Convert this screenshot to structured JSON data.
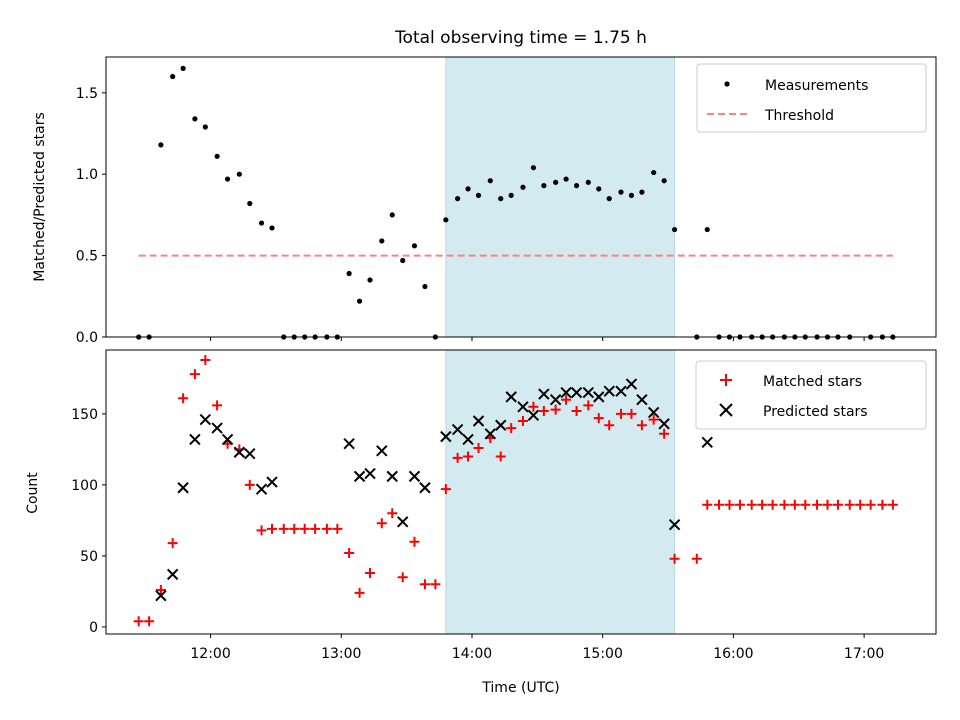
{
  "figure": {
    "title": "Total observing time = 1.75 h",
    "xlabel": "Time (UTC)",
    "x_tick_labels": [
      "12:00",
      "13:00",
      "14:00",
      "15:00",
      "16:00",
      "17:00"
    ],
    "x_tick_values": [
      12,
      13,
      14,
      15,
      16,
      17
    ],
    "xlim": [
      11.2,
      17.55
    ],
    "highlight_span": [
      13.8,
      15.55
    ],
    "highlight_color": "#d3eaf0"
  },
  "chart_data": [
    {
      "type": "scatter",
      "ylabel": "Matched/Predicted stars",
      "ylim": [
        0,
        1.72
      ],
      "y_ticks": [
        0.0,
        0.5,
        1.0,
        1.5
      ],
      "y_tick_labels": [
        "0.0",
        "0.5",
        "1.0",
        "1.5"
      ],
      "legend_position": "top-right",
      "series": [
        {
          "name": "Measurements",
          "marker": "dot",
          "color": "#000000",
          "points": [
            [
              11.45,
              0.0
            ],
            [
              11.53,
              0.0
            ],
            [
              11.62,
              1.18
            ],
            [
              11.71,
              1.6
            ],
            [
              11.79,
              1.65
            ],
            [
              11.88,
              1.34
            ],
            [
              11.96,
              1.29
            ],
            [
              12.05,
              1.11
            ],
            [
              12.13,
              0.97
            ],
            [
              12.22,
              1.0
            ],
            [
              12.3,
              0.82
            ],
            [
              12.39,
              0.7
            ],
            [
              12.47,
              0.67
            ],
            [
              12.56,
              0.0
            ],
            [
              12.64,
              0.0
            ],
            [
              12.72,
              0.0
            ],
            [
              12.8,
              0.0
            ],
            [
              12.89,
              0.0
            ],
            [
              12.97,
              0.0
            ],
            [
              13.06,
              0.39
            ],
            [
              13.14,
              0.22
            ],
            [
              13.22,
              0.35
            ],
            [
              13.31,
              0.59
            ],
            [
              13.39,
              0.75
            ],
            [
              13.47,
              0.47
            ],
            [
              13.56,
              0.56
            ],
            [
              13.64,
              0.31
            ],
            [
              13.72,
              0.0
            ],
            [
              13.8,
              0.72
            ],
            [
              13.89,
              0.85
            ],
            [
              13.97,
              0.91
            ],
            [
              14.05,
              0.87
            ],
            [
              14.14,
              0.96
            ],
            [
              14.22,
              0.85
            ],
            [
              14.3,
              0.87
            ],
            [
              14.39,
              0.92
            ],
            [
              14.47,
              1.04
            ],
            [
              14.55,
              0.93
            ],
            [
              14.64,
              0.95
            ],
            [
              14.72,
              0.97
            ],
            [
              14.8,
              0.93
            ],
            [
              14.89,
              0.95
            ],
            [
              14.97,
              0.91
            ],
            [
              15.05,
              0.85
            ],
            [
              15.14,
              0.89
            ],
            [
              15.22,
              0.87
            ],
            [
              15.3,
              0.89
            ],
            [
              15.39,
              1.01
            ],
            [
              15.47,
              0.96
            ],
            [
              15.55,
              0.66
            ],
            [
              15.72,
              0.0
            ],
            [
              15.8,
              0.66
            ],
            [
              15.89,
              0.0
            ],
            [
              15.97,
              0.0
            ],
            [
              16.05,
              0.0
            ],
            [
              16.14,
              0.0
            ],
            [
              16.22,
              0.0
            ],
            [
              16.3,
              0.0
            ],
            [
              16.39,
              0.0
            ],
            [
              16.47,
              0.0
            ],
            [
              16.55,
              0.0
            ],
            [
              16.64,
              0.0
            ],
            [
              16.72,
              0.0
            ],
            [
              16.8,
              0.0
            ],
            [
              16.89,
              0.0
            ],
            [
              17.05,
              0.0
            ],
            [
              17.14,
              0.0
            ],
            [
              17.22,
              0.0
            ]
          ]
        },
        {
          "name": "Threshold",
          "line": "dashed",
          "color": "#ff8080",
          "points": [
            [
              11.45,
              0.5
            ],
            [
              17.22,
              0.5
            ]
          ]
        }
      ]
    },
    {
      "type": "scatter",
      "ylabel": "Count",
      "ylim": [
        -5,
        195
      ],
      "y_ticks": [
        0,
        50,
        100,
        150
      ],
      "y_tick_labels": [
        "0",
        "50",
        "100",
        "150"
      ],
      "legend_position": "top-right",
      "series": [
        {
          "name": "Matched stars",
          "marker": "plus",
          "color": "#ff0000",
          "points": [
            [
              11.45,
              4
            ],
            [
              11.53,
              4
            ],
            [
              11.62,
              26
            ],
            [
              11.71,
              59
            ],
            [
              11.79,
              161
            ],
            [
              11.88,
              178
            ],
            [
              11.96,
              188
            ],
            [
              12.05,
              156
            ],
            [
              12.13,
              129
            ],
            [
              12.22,
              125
            ],
            [
              12.3,
              100
            ],
            [
              12.39,
              68
            ],
            [
              12.47,
              69
            ],
            [
              12.56,
              69
            ],
            [
              12.64,
              69
            ],
            [
              12.72,
              69
            ],
            [
              12.8,
              69
            ],
            [
              12.89,
              69
            ],
            [
              12.97,
              69
            ],
            [
              13.06,
              52
            ],
            [
              13.14,
              24
            ],
            [
              13.22,
              38
            ],
            [
              13.31,
              73
            ],
            [
              13.39,
              80
            ],
            [
              13.47,
              35
            ],
            [
              13.56,
              60
            ],
            [
              13.64,
              30
            ],
            [
              13.72,
              30
            ],
            [
              13.8,
              97
            ],
            [
              13.89,
              119
            ],
            [
              13.97,
              120
            ],
            [
              14.05,
              126
            ],
            [
              14.14,
              133
            ],
            [
              14.22,
              120
            ],
            [
              14.3,
              140
            ],
            [
              14.39,
              145
            ],
            [
              14.47,
              155
            ],
            [
              14.55,
              152
            ],
            [
              14.64,
              153
            ],
            [
              14.72,
              160
            ],
            [
              14.8,
              152
            ],
            [
              14.89,
              156
            ],
            [
              14.97,
              147
            ],
            [
              15.05,
              142
            ],
            [
              15.14,
              150
            ],
            [
              15.22,
              150
            ],
            [
              15.3,
              142
            ],
            [
              15.39,
              146
            ],
            [
              15.47,
              136
            ],
            [
              15.55,
              48
            ],
            [
              15.72,
              48
            ],
            [
              15.8,
              86
            ],
            [
              15.89,
              86
            ],
            [
              15.97,
              86
            ],
            [
              16.05,
              86
            ],
            [
              16.14,
              86
            ],
            [
              16.22,
              86
            ],
            [
              16.3,
              86
            ],
            [
              16.39,
              86
            ],
            [
              16.47,
              86
            ],
            [
              16.55,
              86
            ],
            [
              16.64,
              86
            ],
            [
              16.72,
              86
            ],
            [
              16.8,
              86
            ],
            [
              16.89,
              86
            ],
            [
              16.97,
              86
            ],
            [
              17.05,
              86
            ],
            [
              17.14,
              86
            ],
            [
              17.22,
              86
            ]
          ]
        },
        {
          "name": "Predicted stars",
          "marker": "x",
          "color": "#000000",
          "points": [
            [
              11.62,
              22
            ],
            [
              11.71,
              37
            ],
            [
              11.79,
              98
            ],
            [
              11.88,
              132
            ],
            [
              11.96,
              146
            ],
            [
              12.05,
              140
            ],
            [
              12.13,
              132
            ],
            [
              12.22,
              123
            ],
            [
              12.3,
              122
            ],
            [
              12.39,
              97
            ],
            [
              12.47,
              102
            ],
            [
              13.06,
              129
            ],
            [
              13.14,
              106
            ],
            [
              13.22,
              108
            ],
            [
              13.31,
              124
            ],
            [
              13.39,
              106
            ],
            [
              13.47,
              74
            ],
            [
              13.56,
              106
            ],
            [
              13.64,
              98
            ],
            [
              13.8,
              134
            ],
            [
              13.89,
              139
            ],
            [
              13.97,
              132
            ],
            [
              14.05,
              145
            ],
            [
              14.14,
              136
            ],
            [
              14.22,
              142
            ],
            [
              14.3,
              162
            ],
            [
              14.39,
              155
            ],
            [
              14.47,
              149
            ],
            [
              14.55,
              164
            ],
            [
              14.64,
              160
            ],
            [
              14.72,
              165
            ],
            [
              14.8,
              165
            ],
            [
              14.89,
              165
            ],
            [
              14.97,
              162
            ],
            [
              15.05,
              166
            ],
            [
              15.14,
              166
            ],
            [
              15.22,
              171
            ],
            [
              15.3,
              160
            ],
            [
              15.39,
              151
            ],
            [
              15.47,
              143
            ],
            [
              15.55,
              72
            ],
            [
              15.8,
              130
            ]
          ]
        }
      ]
    }
  ]
}
